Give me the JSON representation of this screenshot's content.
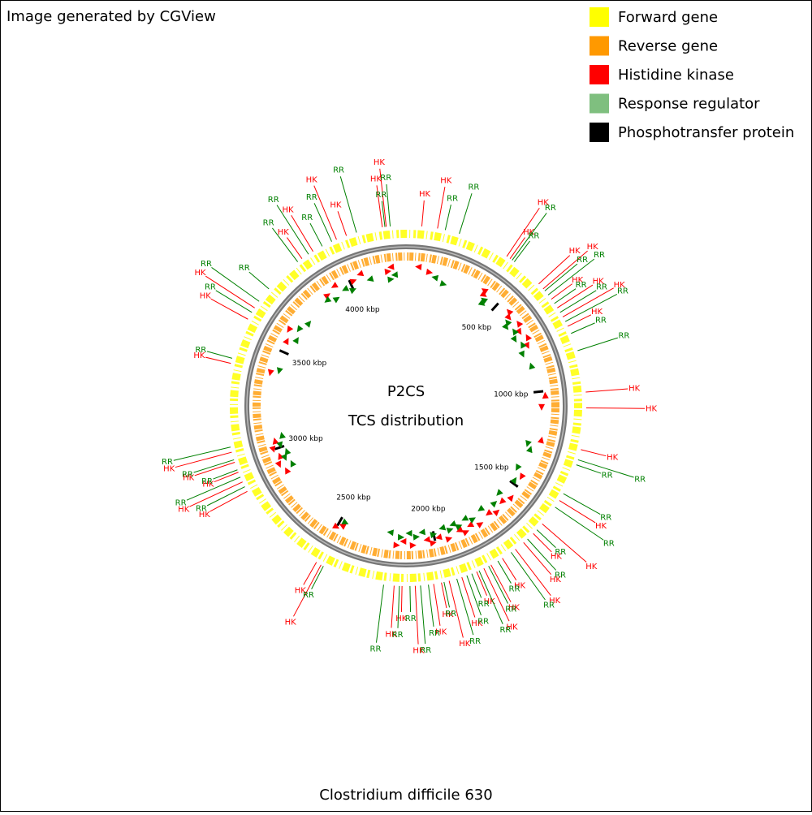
{
  "header": {
    "credit": "Image generated by CGView",
    "caption": "Clostridium difficile 630"
  },
  "center": {
    "title": "P2CS",
    "subtitle": "TCS distribution"
  },
  "legend": [
    {
      "label": "Forward gene",
      "color": "#ffff00"
    },
    {
      "label": "Reverse gene",
      "color": "#ff9900"
    },
    {
      "label": "Histidine kinase",
      "color": "#ff0000"
    },
    {
      "label": "Response regulator",
      "color": "#7fbf7f"
    },
    {
      "label": "Phosphotransfer protein",
      "color": "#000000"
    }
  ],
  "genome": {
    "range": [
      0,
      4290
    ],
    "ticks": [
      {
        "value": 500,
        "label": "500 kbp"
      },
      {
        "value": 1000,
        "label": "1000 kbp"
      },
      {
        "value": 1500,
        "label": "1500 kbp"
      },
      {
        "value": 2000,
        "label": "2000 kbp"
      },
      {
        "value": 2500,
        "label": "2500 kbp"
      },
      {
        "value": 3000,
        "label": "3000 kbp"
      },
      {
        "value": 3500,
        "label": "3500 kbp"
      },
      {
        "value": 4000,
        "label": "4000 kbp"
      }
    ]
  },
  "features": [
    {
      "label": "HK",
      "color": "#ff0000",
      "positions": [
        60,
        120,
        405,
        420,
        565,
        590,
        640,
        680,
        720,
        760,
        1020,
        1080,
        1240,
        1450,
        1560,
        1610,
        1660,
        1700,
        1760,
        1810,
        1840,
        1870,
        1930,
        1980,
        2010,
        2040,
        2110,
        2160,
        2190,
        2480,
        2500,
        2880,
        2920,
        2960,
        3000,
        3040,
        3380,
        3560,
        3610,
        3870,
        3920,
        4020,
        4060,
        4200,
        4215
      ]
    },
    {
      "label": "RR",
      "color": "#008000",
      "positions": [
        150,
        205,
        430,
        440,
        600,
        620,
        660,
        700,
        740,
        790,
        860,
        1280,
        1300,
        1420,
        1480,
        1590,
        1640,
        1720,
        1780,
        1820,
        1860,
        1890,
        1910,
        1950,
        2000,
        2060,
        2090,
        2130,
        2170,
        2230,
        2470,
        2900,
        2940,
        2970,
        3010,
        3060,
        3400,
        3590,
        3640,
        3700,
        3850,
        3900,
        3960,
        4000,
        4100,
        4210,
        4230
      ]
    }
  ]
}
